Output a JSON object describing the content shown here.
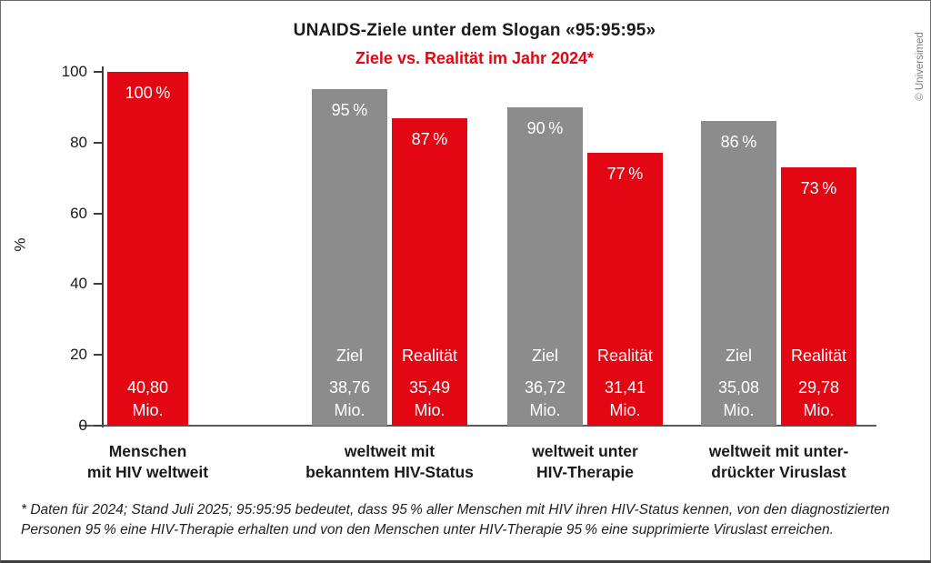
{
  "title": "UNAIDS-Ziele unter dem Slogan «95:95:95»",
  "subtitle": "Ziele vs. Realität im Jahr 2024*",
  "credit": "© Universimed",
  "footnote": {
    "line1": "* Daten für 2024; Stand Juli 2025; 95:95:95 bedeutet, dass 95 % aller Menschen mit HIV ihren HIV-Status kennen, von den diagnostizierten",
    "line2": "Personen 95 % eine HIV-Therapie erhalten und von den Menschen unter HIV-Therapie 95 % eine supprimierte Viruslast erreichen."
  },
  "colors": {
    "red": "#e30613",
    "gray": "#8c8c8c",
    "axis": "#3d3d3d",
    "subtitle": "#e30613",
    "bar_text": "#ffffff"
  },
  "chart_data": {
    "type": "bar",
    "title": "UNAIDS-Ziele unter dem Slogan «95:95:95»",
    "subtitle": "Ziele vs. Realität im Jahr 2024*",
    "ylabel": "%",
    "ylim": [
      0,
      100
    ],
    "yticks": [
      0,
      20,
      40,
      60,
      80,
      100
    ],
    "grid": false,
    "legend_position": "labels inside bars",
    "groups": [
      {
        "category_lines": [
          "Menschen",
          "mit HIV weltweit"
        ],
        "bars": [
          {
            "name": "",
            "value": 100,
            "pct_label": "100 %",
            "amount_label": "40,80",
            "unit_label": "Mio.",
            "color": "red"
          }
        ]
      },
      {
        "category_lines": [
          "weltweit mit",
          "bekanntem HIV-Status"
        ],
        "bars": [
          {
            "name": "Ziel",
            "value": 95,
            "pct_label": "95 %",
            "amount_label": "38,76",
            "unit_label": "Mio.",
            "color": "gray"
          },
          {
            "name": "Realität",
            "value": 87,
            "pct_label": "87 %",
            "amount_label": "35,49",
            "unit_label": "Mio.",
            "color": "red"
          }
        ]
      },
      {
        "category_lines": [
          "weltweit unter",
          "HIV-Therapie"
        ],
        "bars": [
          {
            "name": "Ziel",
            "value": 90,
            "pct_label": "90 %",
            "amount_label": "36,72",
            "unit_label": "Mio.",
            "color": "gray"
          },
          {
            "name": "Realität",
            "value": 77,
            "pct_label": "77 %",
            "amount_label": "31,41",
            "unit_label": "Mio.",
            "color": "red"
          }
        ]
      },
      {
        "category_lines": [
          "weltweit mit unter-",
          "drückter Viruslast"
        ],
        "bars": [
          {
            "name": "Ziel",
            "value": 86,
            "pct_label": "86 %",
            "amount_label": "35,08",
            "unit_label": "Mio.",
            "color": "gray"
          },
          {
            "name": "Realität",
            "value": 73,
            "pct_label": "73 %",
            "amount_label": "29,78",
            "unit_label": "Mio.",
            "color": "red"
          }
        ]
      }
    ]
  }
}
